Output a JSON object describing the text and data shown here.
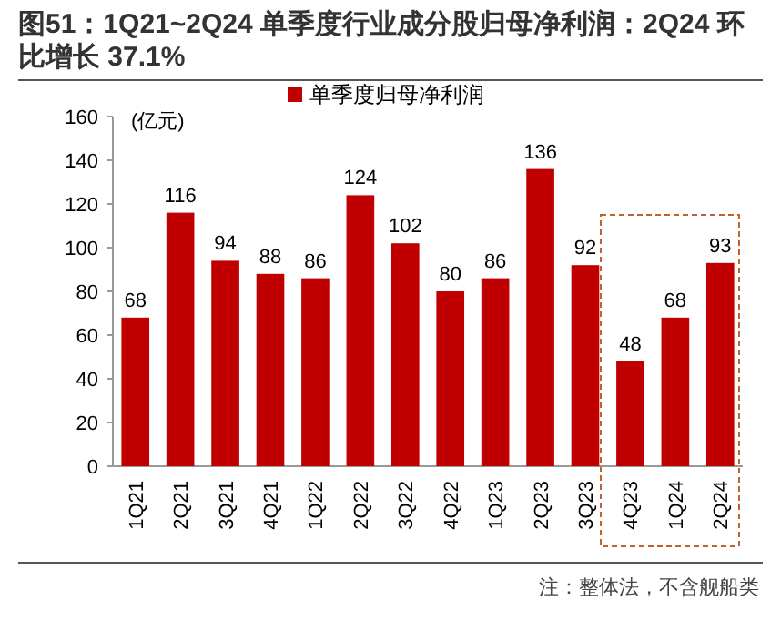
{
  "chart_data": {
    "type": "bar",
    "title": "图51：1Q21~2Q24 单季度行业成分股归母净利润：2Q24 环比增长 37.1%",
    "ylabel": "(亿元)",
    "categories": [
      "1Q21",
      "2Q21",
      "3Q21",
      "4Q21",
      "1Q22",
      "2Q22",
      "3Q22",
      "4Q22",
      "1Q23",
      "2Q23",
      "3Q23",
      "4Q23",
      "1Q24",
      "2Q24"
    ],
    "series": [
      {
        "name": "单季度归母净利润",
        "color": "#c00000",
        "values": [
          68,
          116,
          94,
          88,
          86,
          124,
          102,
          80,
          86,
          136,
          92,
          48,
          68,
          93
        ]
      }
    ],
    "ylim": [
      0,
      160
    ],
    "yticks": [
      0,
      20,
      40,
      60,
      80,
      100,
      120,
      140,
      160
    ],
    "data_labels": true,
    "legend": "top",
    "grid": false,
    "annotations": [
      "注：整体法，不含舰船类"
    ]
  }
}
